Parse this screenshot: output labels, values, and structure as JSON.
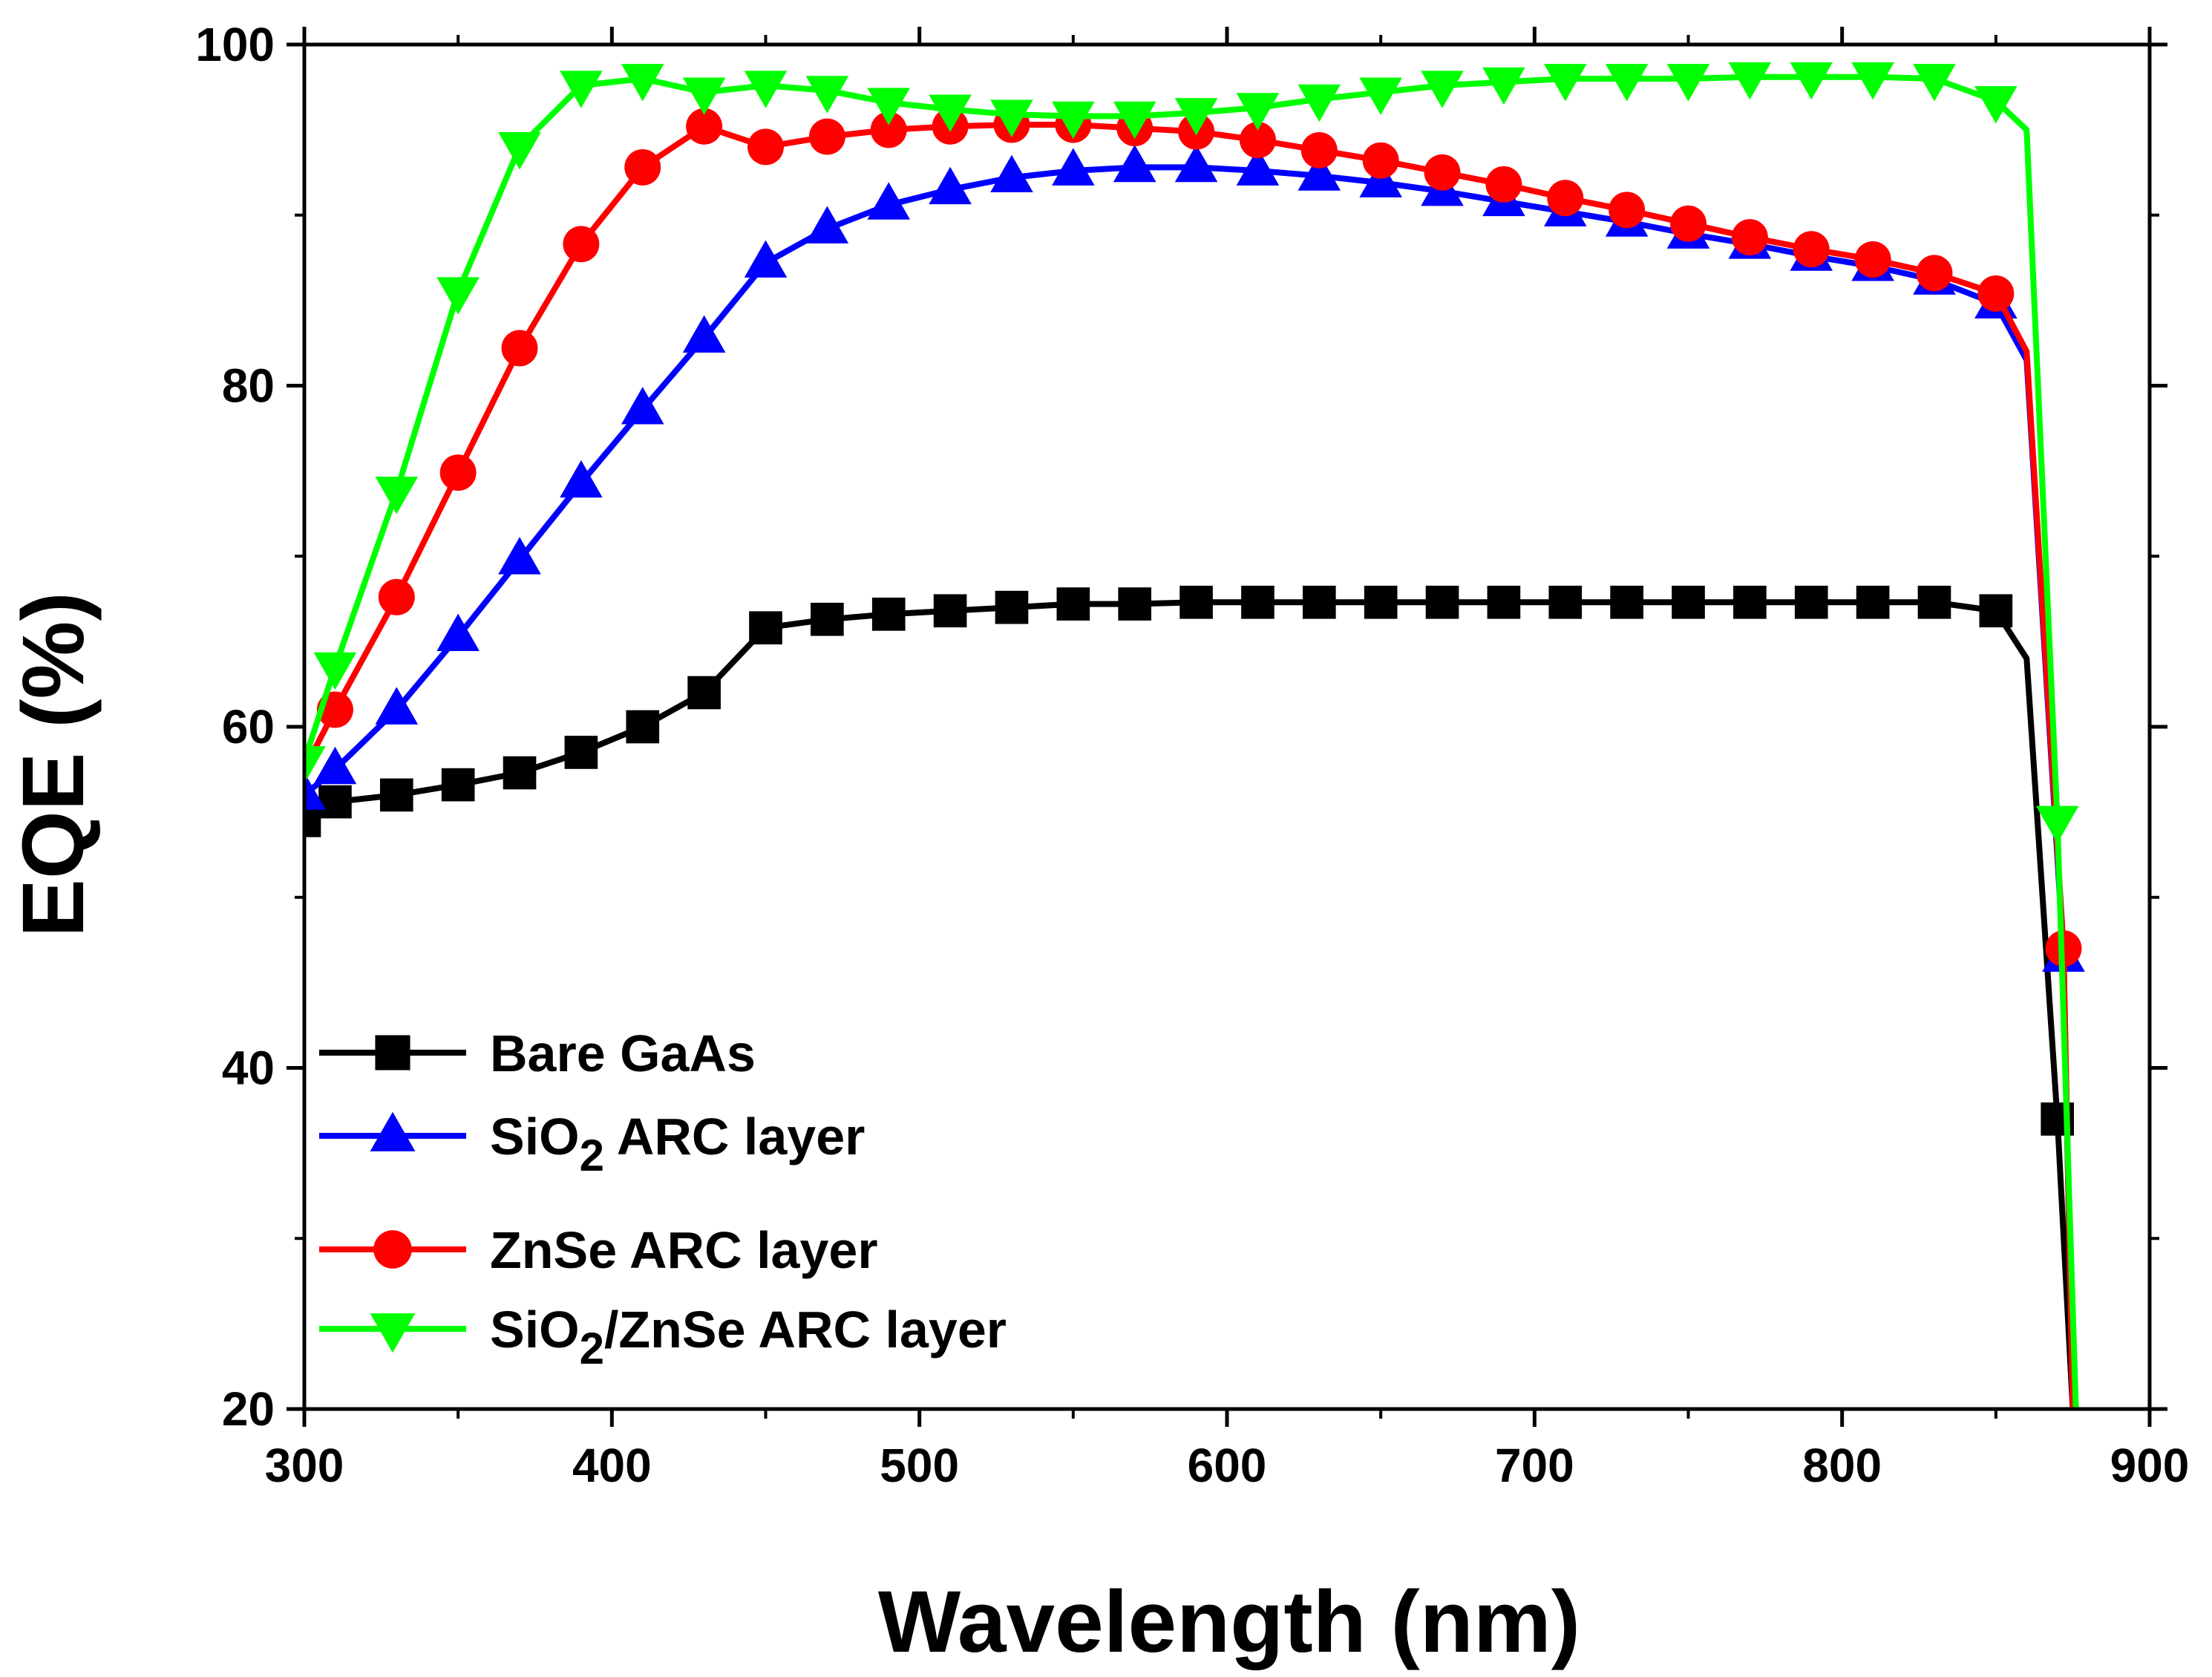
{
  "chart_data": {
    "type": "line",
    "xlabel": "Wavelength (nm)",
    "ylabel": "EQE (%)",
    "xlim": [
      300,
      900
    ],
    "ylim": [
      20,
      100
    ],
    "xticks": [
      300,
      400,
      500,
      600,
      700,
      800,
      900
    ],
    "yticks": [
      20,
      40,
      60,
      80,
      100
    ],
    "grid": false,
    "legend_position": "bottom-left",
    "series": [
      {
        "name": "Bare GaAs",
        "legend_parts": [
          "Bare GaAs"
        ],
        "color": "#000000",
        "marker": "square",
        "x": [
          300,
          310,
          330,
          350,
          370,
          390,
          410,
          430,
          450,
          470,
          490,
          510,
          530,
          550,
          570,
          590,
          610,
          630,
          650,
          670,
          690,
          710,
          730,
          750,
          770,
          790,
          810,
          830,
          850,
          860,
          870,
          875
        ],
        "y": [
          54.5,
          55.6,
          56.0,
          56.6,
          57.3,
          58.5,
          60.0,
          62.0,
          65.8,
          66.3,
          66.6,
          66.8,
          67.0,
          67.2,
          67.2,
          67.3,
          67.3,
          67.3,
          67.3,
          67.3,
          67.3,
          67.3,
          67.3,
          67.3,
          67.3,
          67.3,
          67.3,
          67.3,
          66.8,
          64.0,
          37.0,
          20.0
        ],
        "marker_x": [
          300,
          310,
          330,
          350,
          370,
          390,
          410,
          430,
          450,
          470,
          490,
          510,
          530,
          550,
          570,
          590,
          610,
          630,
          650,
          670,
          690,
          710,
          730,
          750,
          770,
          790,
          810,
          830,
          850,
          870
        ]
      },
      {
        "name": "SiO2 ARC layer",
        "legend_parts": [
          "SiO",
          "2",
          " ARC layer"
        ],
        "color": "#0000ff",
        "marker": "triangle-up",
        "x": [
          300,
          310,
          330,
          350,
          370,
          390,
          410,
          430,
          450,
          470,
          490,
          510,
          530,
          550,
          570,
          590,
          610,
          630,
          650,
          670,
          690,
          710,
          730,
          750,
          770,
          790,
          810,
          830,
          850,
          860,
          872,
          875
        ],
        "y": [
          56.0,
          57.5,
          61.0,
          65.3,
          69.8,
          74.3,
          78.6,
          82.8,
          87.2,
          89.2,
          90.6,
          91.5,
          92.2,
          92.6,
          92.8,
          92.8,
          92.6,
          92.3,
          91.9,
          91.4,
          90.8,
          90.2,
          89.6,
          88.9,
          88.3,
          87.6,
          87.0,
          86.2,
          84.8,
          81.5,
          46.5,
          20.0
        ],
        "marker_x": [
          300,
          310,
          330,
          350,
          370,
          390,
          410,
          430,
          450,
          470,
          490,
          510,
          530,
          550,
          570,
          590,
          610,
          630,
          650,
          670,
          690,
          710,
          730,
          750,
          770,
          790,
          810,
          830,
          850,
          872
        ]
      },
      {
        "name": "ZnSe ARC layer",
        "legend_parts": [
          "ZnSe ARC layer"
        ],
        "color": "#ff0000",
        "marker": "circle",
        "x": [
          300,
          310,
          330,
          350,
          370,
          390,
          410,
          430,
          450,
          470,
          490,
          510,
          530,
          550,
          570,
          590,
          610,
          630,
          650,
          670,
          690,
          710,
          730,
          750,
          770,
          790,
          810,
          830,
          850,
          860,
          872,
          875
        ],
        "y": [
          57.5,
          61.0,
          67.6,
          74.9,
          82.2,
          88.3,
          92.8,
          95.2,
          94.0,
          94.6,
          95.0,
          95.2,
          95.3,
          95.3,
          95.1,
          94.9,
          94.4,
          93.8,
          93.2,
          92.5,
          91.8,
          91.0,
          90.3,
          89.5,
          88.7,
          88.0,
          87.4,
          86.6,
          85.4,
          82.0,
          47.0,
          20.0
        ],
        "marker_x": [
          310,
          330,
          350,
          370,
          390,
          410,
          430,
          450,
          470,
          490,
          510,
          530,
          550,
          570,
          590,
          610,
          630,
          650,
          670,
          690,
          710,
          730,
          750,
          770,
          790,
          810,
          830,
          850,
          872
        ]
      },
      {
        "name": "SiO2/ZnSe ARC layer",
        "legend_parts": [
          "SiO",
          "2",
          "/ZnSe ARC layer"
        ],
        "color": "#00ff00",
        "marker": "triangle-down",
        "x": [
          300,
          310,
          330,
          350,
          370,
          390,
          410,
          430,
          450,
          470,
          490,
          510,
          530,
          550,
          570,
          590,
          610,
          630,
          650,
          670,
          690,
          710,
          730,
          750,
          770,
          790,
          810,
          830,
          850,
          860,
          870,
          876
        ],
        "y": [
          58.0,
          63.5,
          73.8,
          85.5,
          94.0,
          97.6,
          98.0,
          97.2,
          97.6,
          97.3,
          96.6,
          96.2,
          95.9,
          95.8,
          95.8,
          96.0,
          96.3,
          96.8,
          97.2,
          97.6,
          97.8,
          98.0,
          98.0,
          98.0,
          98.1,
          98.1,
          98.1,
          98.0,
          96.7,
          95.0,
          54.5,
          20.0
        ],
        "marker_x": [
          300,
          310,
          330,
          350,
          370,
          390,
          410,
          430,
          450,
          470,
          490,
          510,
          530,
          550,
          570,
          590,
          610,
          630,
          650,
          670,
          690,
          710,
          730,
          750,
          770,
          790,
          810,
          830,
          850,
          870
        ]
      }
    ]
  }
}
